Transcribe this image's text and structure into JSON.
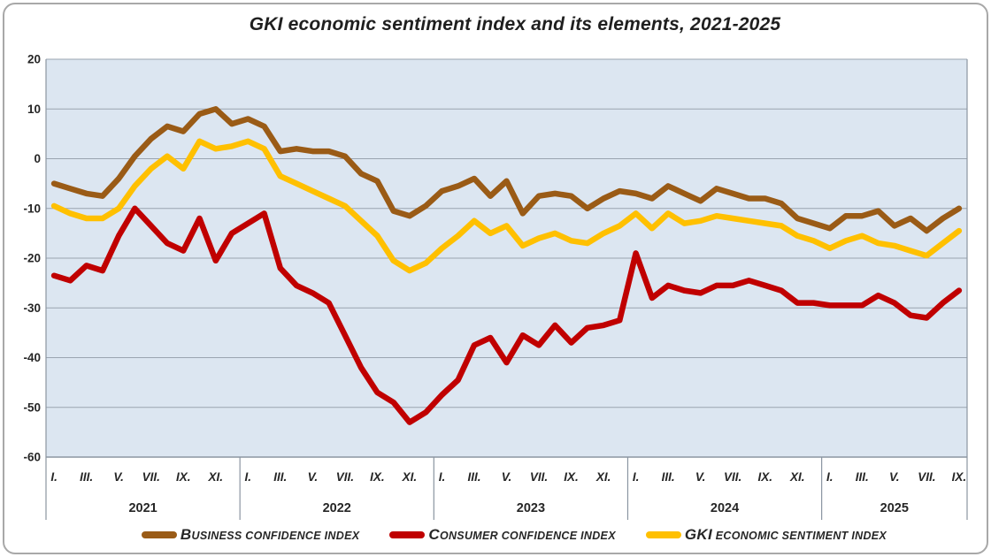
{
  "title": "GKI economic sentiment index and its elements, 2021-2025",
  "colors": {
    "plot_bg": "#dce6f1",
    "gridline": "#9aa4b0",
    "axis_line": "#8b95a1",
    "outer_border": "#a8a8a8",
    "text": "#262626",
    "business": "#9a5b16",
    "consumer": "#c00000",
    "gki": "#ffc000"
  },
  "legend": {
    "items": [
      {
        "lead": "B",
        "rest": "USINESS CONFIDENCE INDEX",
        "series": "business"
      },
      {
        "lead": "C",
        "rest": "ONSUMER CONFIDENCE INDEX",
        "series": "consumer"
      },
      {
        "lead": "GKI",
        "rest": " ECONOMIC SENTIMENT INDEX",
        "series": "gki"
      }
    ]
  },
  "chart_data": {
    "type": "line",
    "title": "GKI economic sentiment index and its elements, 2021-2025",
    "ylim": [
      -60,
      20
    ],
    "y_ticks": [
      20,
      10,
      0,
      -10,
      -20,
      -30,
      -40,
      -50,
      -60
    ],
    "grid": true,
    "legend_position": "bottom",
    "x_axis": {
      "years": [
        {
          "label": "2021",
          "months_count": 12,
          "month_ticks": [
            "I.",
            "III.",
            "V.",
            "VII.",
            "IX.",
            "XI."
          ]
        },
        {
          "label": "2022",
          "months_count": 12,
          "month_ticks": [
            "I.",
            "III.",
            "V.",
            "VII.",
            "IX.",
            "XI."
          ]
        },
        {
          "label": "2023",
          "months_count": 12,
          "month_ticks": [
            "I.",
            "III.",
            "V.",
            "VII.",
            "IX.",
            "XI."
          ]
        },
        {
          "label": "2024",
          "months_count": 12,
          "month_ticks": [
            "I.",
            "III.",
            "V.",
            "VII.",
            "IX.",
            "XI."
          ]
        },
        {
          "label": "2025",
          "months_count": 9,
          "month_ticks": [
            "I.",
            "III.",
            "V.",
            "VII.",
            "IX."
          ]
        }
      ]
    },
    "series": [
      {
        "name": "BUSINESS CONFIDENCE INDEX",
        "key": "business",
        "values": [
          -5,
          -6,
          -7,
          -7.5,
          -4,
          0.5,
          4,
          6.5,
          5.5,
          9,
          10,
          7,
          8,
          6.5,
          1.5,
          2,
          1.5,
          1.5,
          0.5,
          -3,
          -4.5,
          -10.5,
          -11.5,
          -9.5,
          -6.5,
          -5.5,
          -4,
          -7.5,
          -4.5,
          -11,
          -7.5,
          -7,
          -7.5,
          -10,
          -8,
          -6.5,
          -7,
          -8,
          -5.5,
          -7,
          -8.5,
          -6,
          -7,
          -8,
          -8,
          -9,
          -12,
          -13,
          -14,
          -11.5,
          -11.5,
          -10.5,
          -13.5,
          -12,
          -14.5,
          -12,
          -10
        ]
      },
      {
        "name": "CONSUMER CONFIDENCE INDEX",
        "key": "consumer",
        "values": [
          -23.5,
          -24.5,
          -21.5,
          -22.5,
          -15.5,
          -10,
          -13.5,
          -17,
          -18.5,
          -12,
          -20.5,
          -15,
          -13,
          -11,
          -22,
          -25.5,
          -27,
          -29,
          -35.5,
          -42,
          -47,
          -49,
          -53,
          -51,
          -47.5,
          -44.5,
          -37.5,
          -36,
          -41,
          -35.5,
          -37.5,
          -33.5,
          -37,
          -34,
          -33.5,
          -32.5,
          -19,
          -28,
          -25.5,
          -26.5,
          -27,
          -25.5,
          -25.5,
          -24.5,
          -25.5,
          -26.5,
          -29,
          -29,
          -29.5,
          -29.5,
          -29.5,
          -27.5,
          -29,
          -31.5,
          -32,
          -29,
          -26.5
        ]
      },
      {
        "name": "GKI ECONOMIC SENTIMENT INDEX",
        "key": "gki",
        "values": [
          -9.5,
          -11,
          -12,
          -12,
          -10,
          -5.5,
          -2,
          0.5,
          -2,
          3.5,
          2,
          2.5,
          3.5,
          2,
          -3.5,
          -5,
          -6.5,
          -8,
          -9.5,
          -12.5,
          -15.5,
          -20.5,
          -22.5,
          -21,
          -18,
          -15.5,
          -12.5,
          -15,
          -13.5,
          -17.5,
          -16,
          -15,
          -16.5,
          -17,
          -15,
          -13.5,
          -11,
          -14,
          -11,
          -13,
          -12.5,
          -11.5,
          -12,
          -12.5,
          -13,
          -13.5,
          -15.5,
          -16.5,
          -18,
          -16.5,
          -15.5,
          -17,
          -17.5,
          -18.5,
          -19.5,
          -17,
          -14.5
        ]
      }
    ]
  }
}
